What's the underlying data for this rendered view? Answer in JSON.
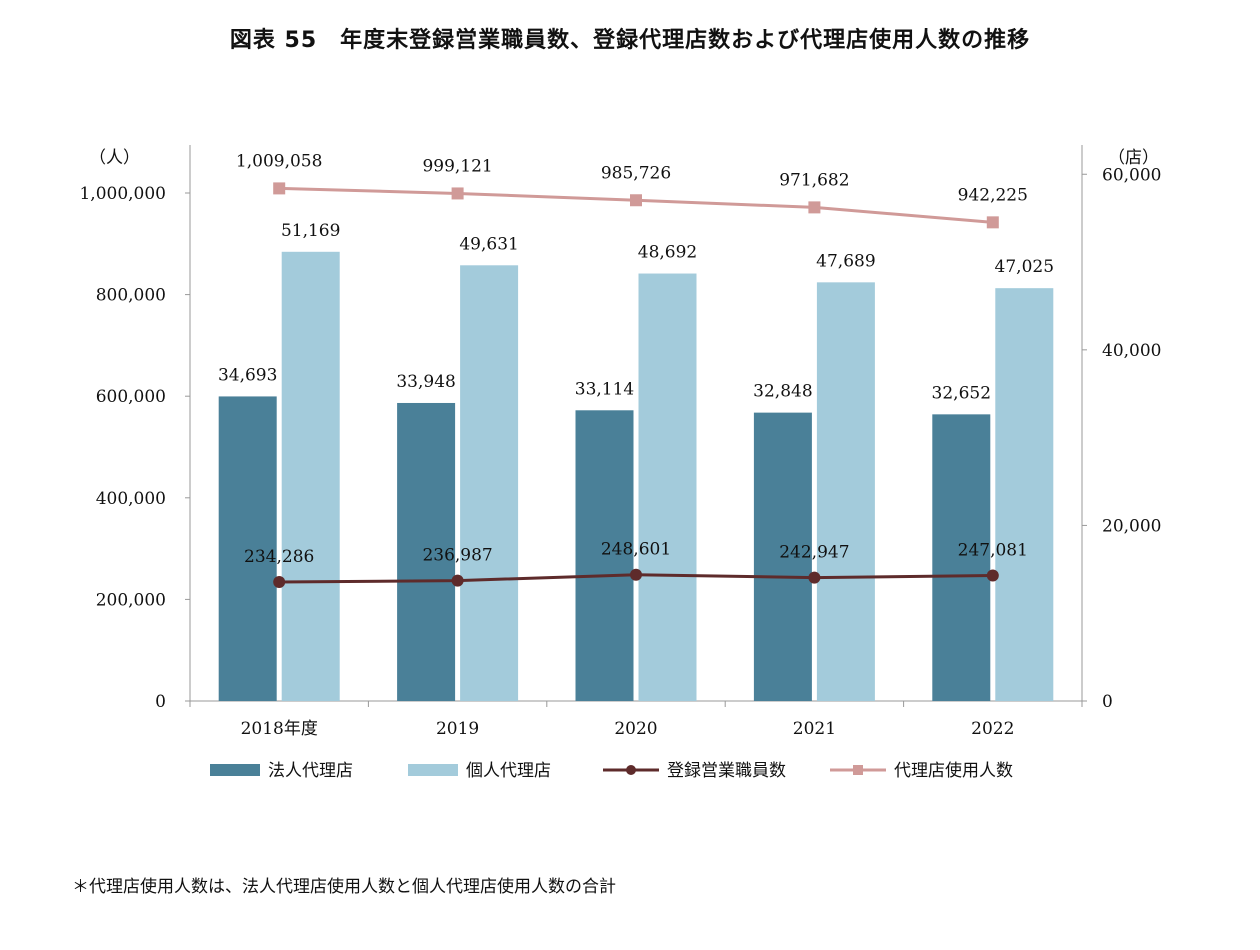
{
  "title": "図表 55　年度末登録営業職員数、登録代理店数および代理店使用人数の推移",
  "footnote": "＊代理店使用人数は、法人代理店使用人数と個人代理店使用人数の合計",
  "chart_data": {
    "type": "bar",
    "categories": [
      "2018年度",
      "2019",
      "2020",
      "2021",
      "2022"
    ],
    "left_axis": {
      "unit_label": "（人）",
      "range": [
        0,
        1000000
      ],
      "ticks": [
        "0",
        "200,000",
        "400,000",
        "600,000",
        "800,000",
        "1,000,000"
      ],
      "tick_values": [
        0,
        200000,
        400000,
        600000,
        800000,
        1000000
      ]
    },
    "right_axis": {
      "unit_label": "（店）",
      "range": [
        0,
        63333
      ],
      "ticks": [
        "0",
        "20,000",
        "40,000",
        "60,000"
      ],
      "tick_values": [
        0,
        20000,
        40000,
        60000
      ]
    },
    "series": [
      {
        "name": "法人代理店",
        "type": "bar",
        "axis": "right",
        "color": "#4a8098",
        "values": [
          34693,
          33948,
          33114,
          32848,
          32652
        ],
        "labels": [
          "34,693",
          "33,948",
          "33,114",
          "32,848",
          "32,652"
        ]
      },
      {
        "name": "個人代理店",
        "type": "bar",
        "axis": "right",
        "color": "#a3cbdb",
        "values": [
          51169,
          49631,
          48692,
          47689,
          47025
        ],
        "labels": [
          "51,169",
          "49,631",
          "48,692",
          "47,689",
          "47,025"
        ]
      },
      {
        "name": "登録営業職員数",
        "type": "line",
        "axis": "left",
        "color": "#5e2b2b",
        "marker": "circle",
        "values": [
          234286,
          236987,
          248601,
          242947,
          247081
        ],
        "labels": [
          "234,286",
          "236,987",
          "248,601",
          "242,947",
          "247,081"
        ]
      },
      {
        "name": "代理店使用人数",
        "type": "line",
        "axis": "left",
        "color": "#d09a98",
        "marker": "square",
        "values": [
          1009058,
          999121,
          985726,
          971682,
          942225
        ],
        "labels": [
          "1,009,058",
          "999,121",
          "985,726",
          "971,682",
          "942,225"
        ]
      }
    ],
    "grid": false,
    "legend_position": "bottom"
  }
}
